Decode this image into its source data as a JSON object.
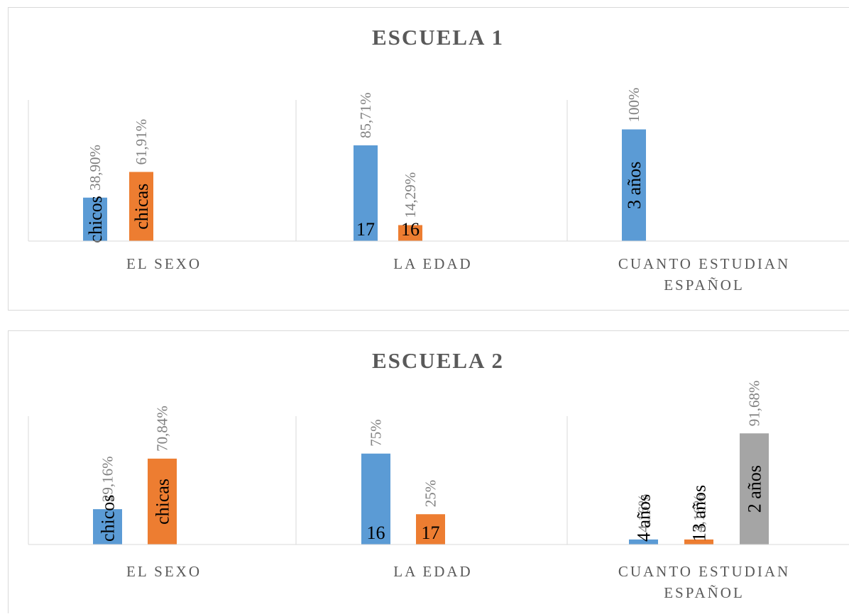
{
  "colors": {
    "s1": "#5b9bd5",
    "s2": "#ed7d31",
    "s3": "#a5a5a5"
  },
  "chart_data": [
    {
      "type": "bar",
      "title": "ESCUELA 1",
      "categories": [
        [
          "EL SEXO"
        ],
        [
          "LA EDAD"
        ],
        [
          "CUANTO ESTUDIAN",
          "ESPAÑOL"
        ]
      ],
      "ylim": [
        0,
        120
      ],
      "grid": false,
      "bars": [
        {
          "category": 0,
          "slot": 0,
          "series": "s1",
          "value": 38.9,
          "label": "38,90%",
          "inner": "chicos",
          "inner_pos": "middle"
        },
        {
          "category": 0,
          "slot": 1,
          "series": "s2",
          "value": 61.91,
          "label": "61,91%",
          "inner": "chicas",
          "inner_pos": "middle"
        },
        {
          "category": 1,
          "slot": 0,
          "series": "s1",
          "value": 85.71,
          "label": "85,71%",
          "inner": "17",
          "inner_pos": "bottom"
        },
        {
          "category": 1,
          "slot": 1,
          "series": "s2",
          "value": 14.29,
          "label": "14,29%",
          "inner": "16",
          "inner_pos": "bottom"
        },
        {
          "category": 2,
          "slot": 0,
          "series": "s1",
          "value": 100,
          "label": "100%",
          "inner": "3 años",
          "inner_pos": "middle"
        }
      ]
    },
    {
      "type": "bar",
      "title": "ESCUELA 2",
      "categories": [
        [
          "EL SEXO"
        ],
        [
          "LA EDAD"
        ],
        [
          "CUANTO ESTUDIAN",
          "ESPAÑOL"
        ]
      ],
      "ylim": [
        0,
        100
      ],
      "grid": false,
      "bars": [
        {
          "category": 0,
          "slot": 0,
          "series": "s1",
          "value": 29.16,
          "label": "29,16%",
          "inner": "chicos",
          "inner_pos": "bottomup"
        },
        {
          "category": 0,
          "slot": 1,
          "series": "s2",
          "value": 70.84,
          "label": "70,84%",
          "inner": "chicas",
          "inner_pos": "middle"
        },
        {
          "category": 1,
          "slot": 0,
          "series": "s1",
          "value": 75,
          "label": "75%",
          "inner": "16",
          "inner_pos": "bottom"
        },
        {
          "category": 1,
          "slot": 1,
          "series": "s2",
          "value": 25,
          "label": "25%",
          "inner": "17",
          "inner_pos": "bottom"
        },
        {
          "category": 2,
          "slot": 0,
          "series": "s1",
          "value": 4.16,
          "label": "4,16%",
          "inner": "4 años",
          "inner_pos": "bottomup"
        },
        {
          "category": 2,
          "slot": 1,
          "series": "s2",
          "value": 4.16,
          "label": "4,16%",
          "inner": "13 años",
          "inner_pos": "bottomup"
        },
        {
          "category": 2,
          "slot": 2,
          "series": "s3",
          "value": 91.68,
          "label": "91,68%",
          "inner": "2 años",
          "inner_pos": "middle"
        }
      ]
    }
  ]
}
